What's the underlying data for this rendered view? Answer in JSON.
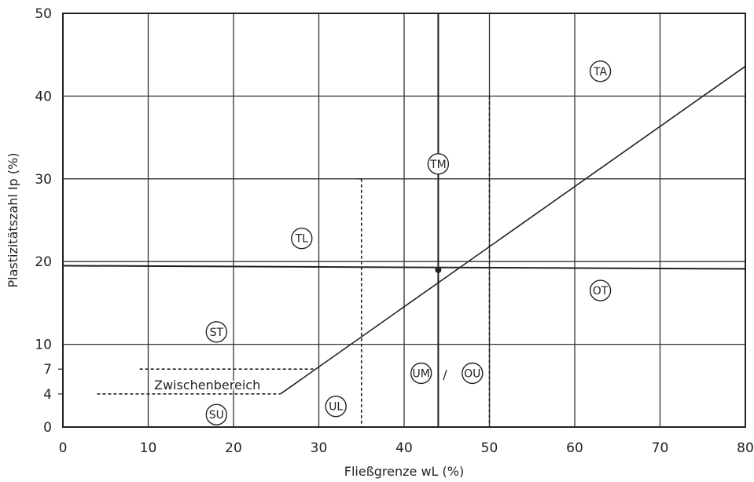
{
  "chart_data": {
    "type": "plasticity-chart",
    "xlabel": "Fließgrenze wL (%)",
    "ylabel": "Plastizitätszahl Ip (%)",
    "xlim": [
      0,
      80
    ],
    "ylim": [
      0,
      50
    ],
    "x_ticks": [
      "0",
      "10",
      "20",
      "30",
      "40",
      "50",
      "60",
      "70",
      "80"
    ],
    "y_ticks": [
      "0",
      "4",
      "7",
      "10",
      "20",
      "30",
      "40",
      "50"
    ],
    "grid": true,
    "a_line": [
      [
        25.5,
        4
      ],
      [
        80,
        43.6
      ]
    ],
    "transition_zone": {
      "label": "Zwischenbereich",
      "lower_ip": 4,
      "upper_ip": 7,
      "lower_from_wl": 4,
      "upper_from_wl": 9
    },
    "boundaries": {
      "wl_35": 35,
      "wl_50": 50,
      "ip_limit": 30,
      "marker_line_wl": 44,
      "marker_line_ip": 19.5
    },
    "sample_point": {
      "wl": 44,
      "ip": 19
    },
    "zones": [
      {
        "label": "TA",
        "wl": 63,
        "ip": 43
      },
      {
        "label": "TM",
        "wl": 44,
        "ip": 31.8
      },
      {
        "label": "TL",
        "wl": 28,
        "ip": 22.8
      },
      {
        "label": "OT",
        "wl": 63,
        "ip": 16.5
      },
      {
        "label": "ST",
        "wl": 18,
        "ip": 11.5
      },
      {
        "label": "UM",
        "wl": 42,
        "ip": 6.5
      },
      {
        "label": "OU",
        "wl": 48,
        "ip": 6.5
      },
      {
        "label": "UL",
        "wl": 32,
        "ip": 2.5
      },
      {
        "label": "SU",
        "wl": 18,
        "ip": 1.5
      }
    ],
    "separator": "/"
  }
}
